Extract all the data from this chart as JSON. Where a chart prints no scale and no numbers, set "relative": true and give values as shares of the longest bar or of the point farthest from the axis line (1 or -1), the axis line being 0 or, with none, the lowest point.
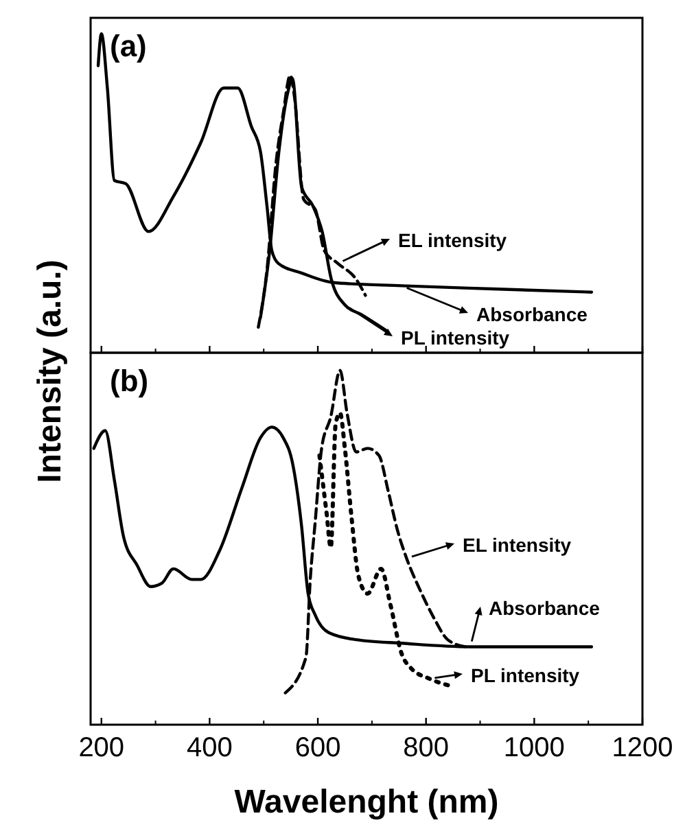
{
  "chart_data": [
    {
      "type": "line",
      "title": "(a)",
      "ylabel": "Intensity (a.u.)",
      "relative": true,
      "xlim": [
        180,
        1200
      ],
      "xticks": [
        200,
        400,
        600,
        800,
        1000,
        1200
      ],
      "tick_labels": false,
      "legend": "right",
      "series": [
        {
          "name": "Absorbance",
          "color": "#000000",
          "line_style": "solid",
          "x": [
            194,
            200,
            211,
            224,
            245,
            287,
            333,
            384,
            426,
            452,
            477,
            494,
            506,
            515,
            527,
            570,
            629,
            755,
            924,
            1106
          ],
          "values": [
            0.9,
            1.0,
            0.83,
            0.54,
            0.53,
            0.38,
            0.49,
            0.66,
            0.83,
            0.83,
            0.71,
            0.63,
            0.46,
            0.32,
            0.28,
            0.25,
            0.22,
            0.21,
            0.2,
            0.19
          ]
        },
        {
          "name": "EL intensity",
          "color": "#000000",
          "line_style": "dashed",
          "x": [
            490,
            506,
            523,
            536,
            549,
            557,
            574,
            595,
            612,
            637,
            671,
            688
          ],
          "values": [
            0.08,
            0.26,
            0.6,
            0.75,
            0.87,
            0.8,
            0.48,
            0.45,
            0.32,
            0.28,
            0.23,
            0.18
          ]
        },
        {
          "name": "PL intensity",
          "color": "#000000",
          "line_style": "solid",
          "x": [
            494,
            511,
            528,
            545,
            553,
            570,
            591,
            608,
            625,
            650,
            680,
            726
          ],
          "values": [
            0.11,
            0.32,
            0.63,
            0.82,
            0.86,
            0.52,
            0.46,
            0.38,
            0.23,
            0.15,
            0.12,
            0.07
          ]
        }
      ]
    },
    {
      "type": "line",
      "title": "(b)",
      "xlabel": "Wavelenght (nm)",
      "relative": true,
      "xlim": [
        180,
        1200
      ],
      "xticks": [
        200,
        400,
        600,
        800,
        1000,
        1200
      ],
      "tick_labels": "x",
      "legend": "right",
      "series": [
        {
          "name": "Absorbance",
          "color": "#000000",
          "line_style": "solid",
          "x": [
            186,
            207,
            224,
            241,
            266,
            291,
            312,
            333,
            367,
            384,
            418,
            460,
            494,
            515,
            536,
            553,
            570,
            582,
            595,
            620,
            671,
            755,
            882,
            1106
          ],
          "values": [
            0.78,
            0.83,
            0.69,
            0.53,
            0.45,
            0.39,
            0.4,
            0.44,
            0.41,
            0.41,
            0.49,
            0.67,
            0.81,
            0.84,
            0.81,
            0.74,
            0.56,
            0.37,
            0.31,
            0.26,
            0.24,
            0.23,
            0.22,
            0.22
          ]
        },
        {
          "name": "EL intensity",
          "color": "#000000",
          "line_style": "dashed",
          "x": [
            540,
            578,
            586,
            595,
            607,
            624,
            641,
            654,
            671,
            692,
            713,
            730,
            747,
            764,
            789,
            815,
            840,
            873
          ],
          "values": [
            0.09,
            0.19,
            0.41,
            0.57,
            0.78,
            0.87,
            1.0,
            0.88,
            0.77,
            0.78,
            0.76,
            0.66,
            0.55,
            0.47,
            0.38,
            0.3,
            0.24,
            0.22
          ]
        },
        {
          "name": "PL intensity",
          "color": "#000000",
          "line_style": "dotted",
          "x": [
            603,
            616,
            624,
            633,
            641,
            650,
            662,
            675,
            692,
            717,
            734,
            755,
            772,
            806,
            844
          ],
          "values": [
            0.76,
            0.6,
            0.5,
            0.85,
            0.88,
            0.78,
            0.59,
            0.42,
            0.37,
            0.44,
            0.34,
            0.2,
            0.16,
            0.13,
            0.11
          ]
        }
      ]
    }
  ]
}
